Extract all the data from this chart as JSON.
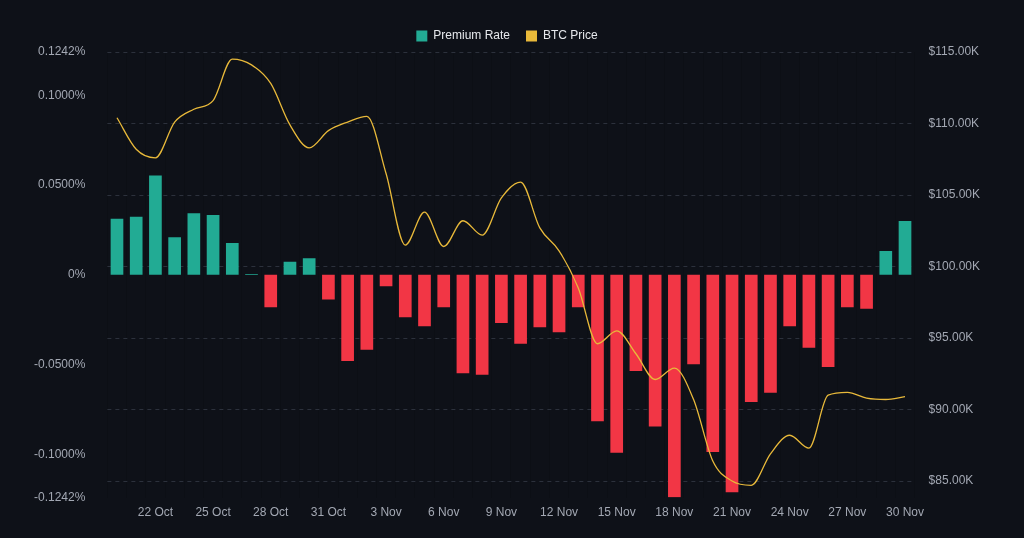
{
  "chart_data": {
    "type": "bar",
    "legend": "top",
    "grid": true,
    "marker": "none",
    "line_style": "solid",
    "categories": [
      null,
      null,
      "22 Oct",
      null,
      null,
      "25 Oct",
      null,
      null,
      "28 Oct",
      null,
      null,
      "31 Oct",
      null,
      null,
      "3 Nov",
      null,
      null,
      "6 Nov",
      null,
      null,
      "9 Nov",
      null,
      null,
      "12 Nov",
      null,
      null,
      "15 Nov",
      null,
      null,
      "18 Nov",
      null,
      null,
      "21 Nov",
      null,
      null,
      "24 Nov",
      null,
      null,
      "27 Nov",
      null,
      null,
      "30 Nov"
    ],
    "series": [
      {
        "name": "Premium Rate",
        "color": "#22ab94",
        "colors": [
          "#22ab94",
          "#22ab94",
          "#22ab94",
          "#22ab94",
          "#22ab94",
          "#22ab94",
          "#22ab94",
          "#22ab94",
          "#f23645",
          "#22ab94",
          "#22ab94",
          "#f23645",
          "#f23645",
          "#f23645",
          "#f23645",
          "#f23645",
          "#f23645",
          "#f23645",
          "#f23645",
          "#f23645",
          "#f23645",
          "#f23645",
          "#f23645",
          "#f23645",
          "#f23645",
          "#f23645",
          "#f23645",
          "#f23645",
          "#f23645",
          "#f23645",
          "#f23645",
          "#f23645",
          "#f23645",
          "#f23645",
          "#f23645",
          "#f23645",
          "#f23645",
          "#f23645",
          "#f23645",
          "#f23645",
          "#22ab94",
          "#22ab94"
        ],
        "values": [
          0.0312,
          0.0324,
          0.0553,
          0.021,
          0.0343,
          0.0333,
          0.0177,
          0.0005,
          -0.0181,
          0.0073,
          0.0092,
          -0.0137,
          -0.048,
          -0.0418,
          -0.0064,
          -0.0237,
          -0.0287,
          -0.0181,
          -0.0549,
          -0.0557,
          -0.0268,
          -0.0385,
          -0.0293,
          -0.032,
          -0.0181,
          -0.0817,
          -0.0992,
          -0.0536,
          -0.0846,
          -0.124,
          -0.0499,
          -0.0988,
          -0.1212,
          -0.0709,
          -0.0657,
          -0.0287,
          -0.0406,
          -0.0514,
          -0.0181,
          -0.0189,
          0.0133,
          0.03
        ]
      },
      {
        "name": "BTC Price",
        "type": "line",
        "axis": "y2",
        "color": "#e8b93a",
        "values": [
          110400,
          108200,
          107600,
          110100,
          111000,
          111600,
          114500,
          114100,
          112800,
          109900,
          108300,
          109500,
          110100,
          110500,
          106500,
          101500,
          103800,
          101400,
          103200,
          102200,
          104800,
          105900,
          102700,
          101100,
          98500,
          94600,
          95500,
          93900,
          92100,
          92900,
          90700,
          86400,
          85000,
          84700,
          86900,
          88200,
          87300,
          91000,
          91200,
          90800,
          90700,
          90900
        ]
      }
    ],
    "ylim": [
      -0.1242,
      0.1242
    ],
    "yticks": [
      {
        "value": -0.1242,
        "label": "-0.1242%"
      },
      {
        "value": -0.1,
        "label": "-0.1000%"
      },
      {
        "value": -0.05,
        "label": "-0.0500%"
      },
      {
        "value": 0,
        "label": "0%"
      },
      {
        "value": 0.05,
        "label": "0.0500%"
      },
      {
        "value": 0.1,
        "label": "0.1000%"
      },
      {
        "value": 0.1242,
        "label": "0.1242%"
      }
    ],
    "y2lim": [
      83840,
      115000
    ],
    "y2ticks": [
      {
        "value": 85000,
        "label": "$85.00K"
      },
      {
        "value": 90000,
        "label": "$90.00K"
      },
      {
        "value": 95000,
        "label": "$95.00K"
      },
      {
        "value": 100000,
        "label": "$100.00K"
      },
      {
        "value": 105000,
        "label": "$105.00K"
      },
      {
        "value": 110000,
        "label": "$110.00K"
      },
      {
        "value": 115000,
        "label": "$115.00K"
      }
    ]
  }
}
